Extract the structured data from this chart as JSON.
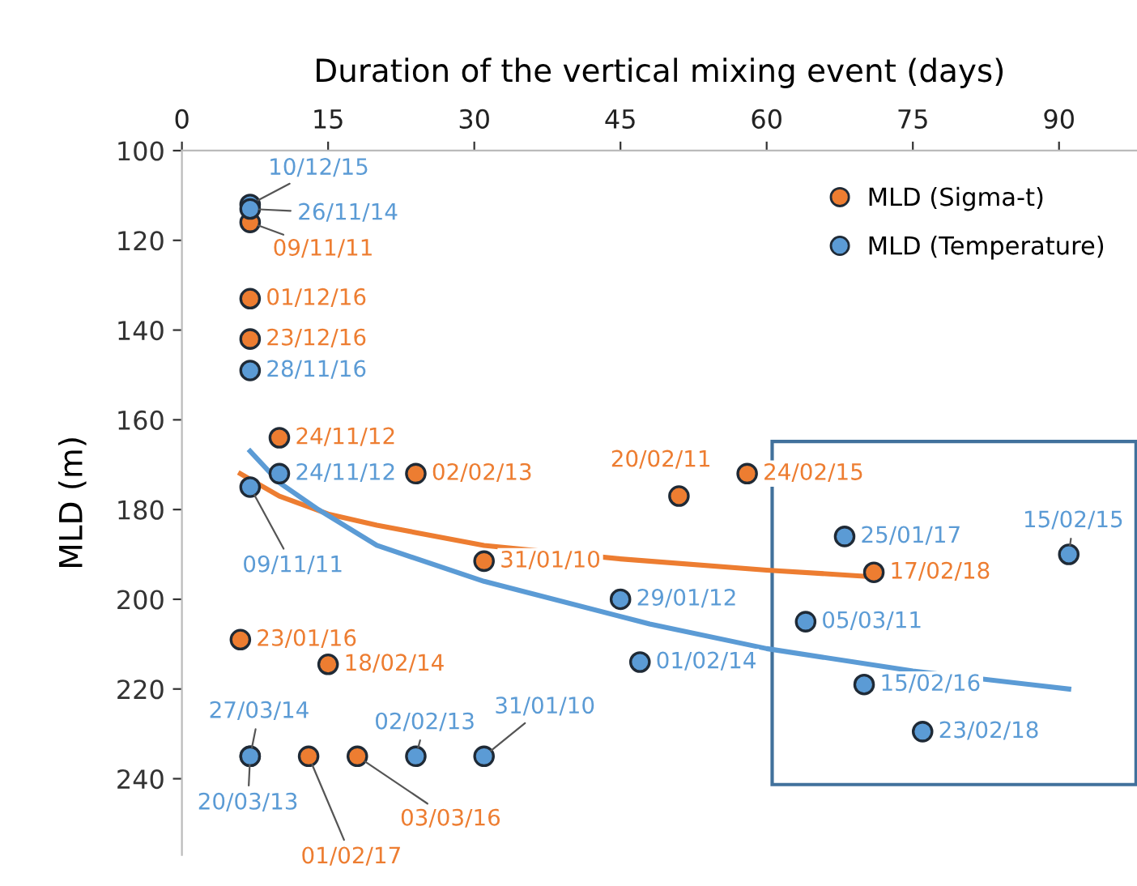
{
  "chart_data": {
    "type": "scatter",
    "xlabel": "Duration of the vertical mixing event (days)",
    "ylabel": "MLD (m)",
    "xlim": [
      0,
      98
    ],
    "xticks": [
      0,
      15,
      30,
      45,
      60,
      75,
      90
    ],
    "ylim": [
      257,
      100
    ],
    "yticks": [
      100,
      120,
      140,
      160,
      180,
      200,
      220,
      240
    ],
    "grid": false,
    "legend": "top right",
    "marker": "circle",
    "series": [
      {
        "name": "MLD (Sigma-t)",
        "color": "#ed7d31",
        "x": [
          7,
          7,
          7,
          10,
          24,
          51,
          58,
          31,
          71,
          6,
          15,
          13,
          18
        ],
        "values": [
          116,
          133,
          142,
          164,
          172,
          177,
          172,
          191.5,
          194,
          209,
          214.5,
          235,
          235
        ],
        "value_labels": [
          "09/11/11",
          "01/12/16",
          "23/12/16",
          "24/11/12",
          "02/02/13",
          "20/02/11",
          "24/02/15",
          "31/01/10",
          "17/02/18",
          "23/01/16",
          "18/02/14",
          "01/02/17",
          "03/03/16"
        ]
      },
      {
        "name": "MLD (Temperature)",
        "color": "#5b9bd5",
        "x": [
          7,
          7,
          7,
          10,
          7,
          45,
          47,
          68,
          91,
          64,
          70,
          76,
          7,
          7,
          24,
          31
        ],
        "values": [
          112,
          113,
          149,
          172,
          175,
          200,
          214,
          186,
          190,
          205,
          219,
          229.5,
          235,
          235,
          235,
          235
        ],
        "value_labels": [
          "10/12/15",
          "26/11/14",
          "28/11/16",
          "24/11/12",
          "09/11/11",
          "29/01/12",
          "01/02/14",
          "25/01/17",
          "15/02/15",
          "05/03/11",
          "15/02/16",
          "23/02/18",
          "27/03/14",
          "20/03/13",
          "02/02/13",
          "31/01/10"
        ]
      },
      {
        "type": "line",
        "marker": "none",
        "color": "#ed7d31",
        "x": [
          6,
          10,
          15,
          20,
          31,
          45,
          60,
          71
        ],
        "values": [
          172,
          177,
          181,
          183.5,
          188,
          191,
          193.5,
          195
        ]
      },
      {
        "type": "line",
        "marker": "none",
        "color": "#5b9bd5",
        "x": [
          7,
          10,
          14,
          20,
          31,
          48,
          60,
          75,
          91
        ],
        "values": [
          167,
          174,
          180,
          188,
          196,
          205.5,
          211,
          216,
          220
        ]
      }
    ]
  }
}
